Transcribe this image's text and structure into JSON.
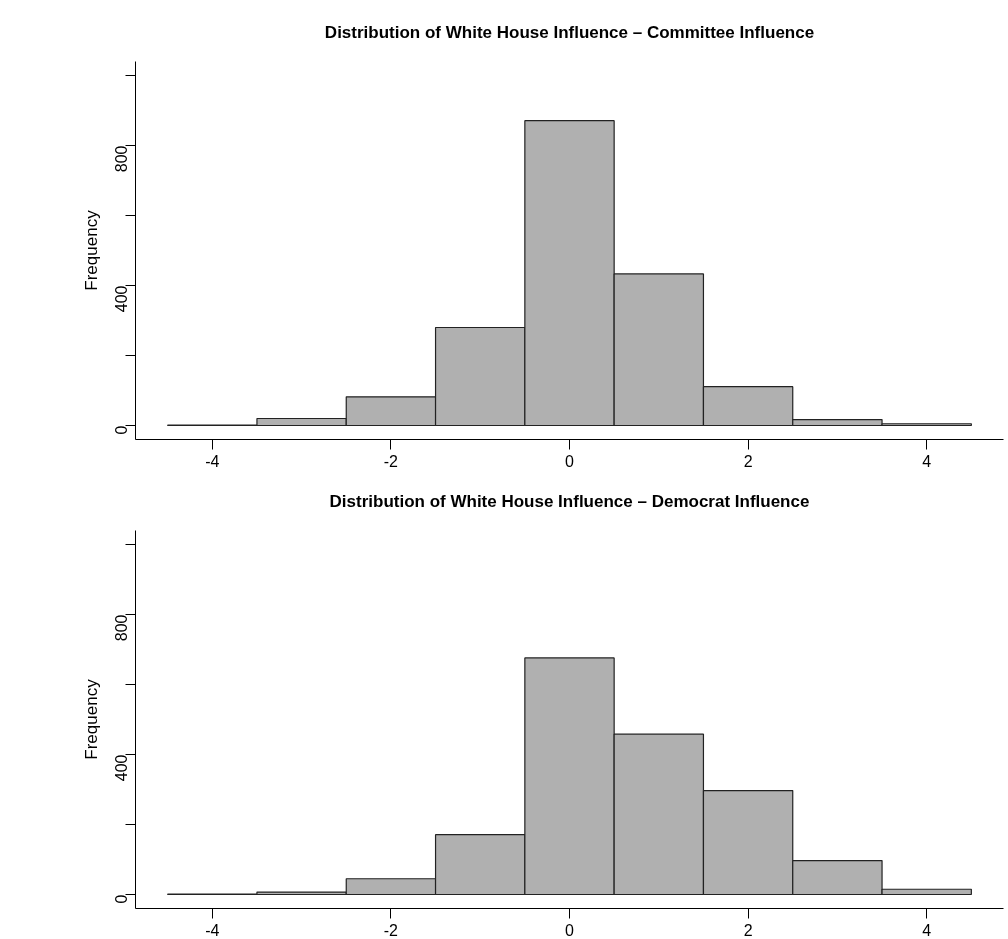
{
  "chart_data": [
    {
      "type": "histogram",
      "title": "Distribution of White House Influence – Committee Influence",
      "ylabel": "Frequency",
      "bins": [
        -4.5,
        -3.5,
        -2.5,
        -1.5,
        -0.5,
        0.5,
        1.5,
        2.5,
        3.5,
        4.5
      ],
      "values": [
        1,
        20,
        82,
        280,
        871,
        433,
        111,
        17,
        5
      ],
      "color": "#b0b0b0",
      "xlim": [
        -4.86,
        4.86
      ],
      "ylim": [
        -40,
        1040
      ],
      "xticks": [
        -4,
        -2,
        0,
        2,
        4
      ],
      "yticks": [
        0,
        {
          "value": 200,
          "label": null
        },
        400,
        {
          "value": 600,
          "label": null
        },
        800,
        {
          "value": 1000,
          "label": null
        }
      ],
      "grid": false
    },
    {
      "type": "histogram",
      "title": "Distribution of White House Influence – Democrat Influence",
      "ylabel": "Frequency",
      "bins": [
        -4.5,
        -3.5,
        -2.5,
        -1.5,
        -0.5,
        0.5,
        1.5,
        2.5,
        3.5,
        4.5
      ],
      "values": [
        1,
        7,
        45,
        171,
        676,
        458,
        297,
        97,
        15
      ],
      "color": "#b0b0b0",
      "xlim": [
        -4.86,
        4.86
      ],
      "ylim": [
        -40,
        1040
      ],
      "xticks": [
        -4,
        -2,
        0,
        2,
        4
      ],
      "yticks": [
        0,
        {
          "value": 200,
          "label": null
        },
        400,
        {
          "value": 600,
          "label": null
        },
        800,
        {
          "value": 1000,
          "label": null
        }
      ],
      "grid": false
    }
  ]
}
